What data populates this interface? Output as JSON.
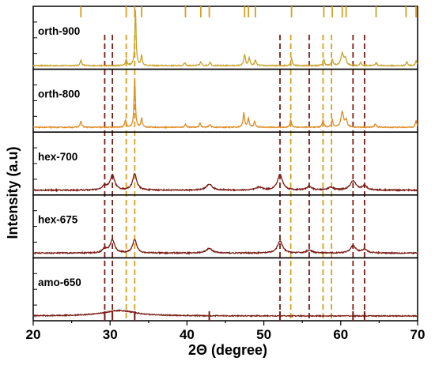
{
  "chart_data": {
    "type": "line",
    "xlabel": "2Θ (degree)",
    "ylabel": "Intensity (a.u)",
    "xlim": [
      20,
      70
    ],
    "x_ticks": [
      "20",
      "30",
      "40",
      "50",
      "60",
      "70"
    ],
    "panels": [
      {
        "name": "orth-900",
        "color": "#c8a22a",
        "baseline": 0.06,
        "noise": 0.008,
        "peaks": [
          {
            "x": 26.2,
            "h": 0.09,
            "w": 0.12
          },
          {
            "x": 32.1,
            "h": 0.1,
            "w": 0.12
          },
          {
            "x": 33.3,
            "h": 0.93,
            "w": 0.1
          },
          {
            "x": 34.1,
            "h": 0.18,
            "w": 0.1
          },
          {
            "x": 39.7,
            "h": 0.05,
            "w": 0.12
          },
          {
            "x": 41.8,
            "h": 0.06,
            "w": 0.12
          },
          {
            "x": 43.0,
            "h": 0.06,
            "w": 0.12
          },
          {
            "x": 47.5,
            "h": 0.18,
            "w": 0.12
          },
          {
            "x": 48.1,
            "h": 0.13,
            "w": 0.12
          },
          {
            "x": 48.9,
            "h": 0.09,
            "w": 0.12
          },
          {
            "x": 53.6,
            "h": 0.12,
            "w": 0.12
          },
          {
            "x": 57.8,
            "h": 0.1,
            "w": 0.12
          },
          {
            "x": 58.9,
            "h": 0.1,
            "w": 0.12
          },
          {
            "x": 60.2,
            "h": 0.2,
            "w": 0.2
          },
          {
            "x": 60.6,
            "h": 0.12,
            "w": 0.15
          },
          {
            "x": 62.6,
            "h": 0.05,
            "w": 0.12
          },
          {
            "x": 64.6,
            "h": 0.05,
            "w": 0.12
          },
          {
            "x": 68.6,
            "h": 0.06,
            "w": 0.12
          },
          {
            "x": 69.8,
            "h": 0.08,
            "w": 0.12
          }
        ]
      },
      {
        "name": "orth-800",
        "color": "#e08a22",
        "baseline": 0.08,
        "noise": 0.008,
        "peaks": [
          {
            "x": 26.2,
            "h": 0.1,
            "w": 0.12
          },
          {
            "x": 32.0,
            "h": 0.12,
            "w": 0.12
          },
          {
            "x": 33.2,
            "h": 0.82,
            "w": 0.1
          },
          {
            "x": 34.1,
            "h": 0.16,
            "w": 0.1
          },
          {
            "x": 39.8,
            "h": 0.05,
            "w": 0.12
          },
          {
            "x": 41.7,
            "h": 0.07,
            "w": 0.12
          },
          {
            "x": 43.0,
            "h": 0.05,
            "w": 0.12
          },
          {
            "x": 47.4,
            "h": 0.24,
            "w": 0.12
          },
          {
            "x": 48.0,
            "h": 0.14,
            "w": 0.12
          },
          {
            "x": 48.8,
            "h": 0.1,
            "w": 0.12
          },
          {
            "x": 53.5,
            "h": 0.12,
            "w": 0.12
          },
          {
            "x": 57.7,
            "h": 0.12,
            "w": 0.12
          },
          {
            "x": 58.9,
            "h": 0.12,
            "w": 0.12
          },
          {
            "x": 60.2,
            "h": 0.25,
            "w": 0.2
          },
          {
            "x": 60.7,
            "h": 0.12,
            "w": 0.15
          },
          {
            "x": 64.5,
            "h": 0.06,
            "w": 0.12
          },
          {
            "x": 69.8,
            "h": 0.11,
            "w": 0.12
          }
        ]
      },
      {
        "name": "hex-700",
        "color": "#7a1c14",
        "baseline": 0.08,
        "noise": 0.01,
        "peaks": [
          {
            "x": 29.3,
            "h": 0.07,
            "w": 0.35
          },
          {
            "x": 30.3,
            "h": 0.25,
            "w": 0.35
          },
          {
            "x": 33.2,
            "h": 0.27,
            "w": 0.32
          },
          {
            "x": 42.9,
            "h": 0.1,
            "w": 0.45
          },
          {
            "x": 49.4,
            "h": 0.05,
            "w": 0.45
          },
          {
            "x": 52.1,
            "h": 0.26,
            "w": 0.4
          },
          {
            "x": 55.9,
            "h": 0.06,
            "w": 0.4
          },
          {
            "x": 58.7,
            "h": 0.05,
            "w": 0.4
          },
          {
            "x": 61.6,
            "h": 0.15,
            "w": 0.45
          },
          {
            "x": 63.1,
            "h": 0.07,
            "w": 0.4
          }
        ]
      },
      {
        "name": "hex-675",
        "color": "#7a1c14",
        "baseline": 0.08,
        "noise": 0.01,
        "peaks": [
          {
            "x": 29.3,
            "h": 0.07,
            "w": 0.35
          },
          {
            "x": 30.3,
            "h": 0.22,
            "w": 0.35
          },
          {
            "x": 33.2,
            "h": 0.22,
            "w": 0.32
          },
          {
            "x": 42.9,
            "h": 0.08,
            "w": 0.45
          },
          {
            "x": 52.1,
            "h": 0.2,
            "w": 0.4
          },
          {
            "x": 55.9,
            "h": 0.05,
            "w": 0.4
          },
          {
            "x": 61.6,
            "h": 0.12,
            "w": 0.45
          },
          {
            "x": 63.1,
            "h": 0.06,
            "w": 0.4
          }
        ]
      },
      {
        "name": "amo-650",
        "color": "#7a1c14",
        "baseline": 0.08,
        "noise": 0.008,
        "peaks": [
          {
            "x": 31.2,
            "h": 0.09,
            "w": 2.6
          }
        ]
      }
    ],
    "dashed_reference_lines": [
      {
        "x": 29.3,
        "color": "#7a1c14"
      },
      {
        "x": 30.3,
        "color": "#7a1c14"
      },
      {
        "x": 32.1,
        "color": "#d8a020"
      },
      {
        "x": 33.2,
        "color": "#d8a020"
      },
      {
        "x": 52.1,
        "color": "#7a1c14"
      },
      {
        "x": 53.5,
        "color": "#d8a020"
      },
      {
        "x": 55.9,
        "color": "#7a1c14"
      },
      {
        "x": 57.7,
        "color": "#d8a020"
      },
      {
        "x": 58.8,
        "color": "#d8a020"
      },
      {
        "x": 61.6,
        "color": "#7a1c14"
      },
      {
        "x": 63.1,
        "color": "#7a1c14"
      }
    ],
    "top_reference_ticks": [
      26.2,
      32.1,
      33.2,
      34.1,
      39.8,
      41.8,
      42.9,
      47.5,
      48.0,
      48.9,
      53.6,
      57.8,
      58.9,
      60.2,
      60.7,
      64.6,
      68.5,
      69.8
    ],
    "bottom_reference_ticks": [
      29.3,
      30.3,
      33.2,
      42.9,
      52.1,
      61.6,
      63.1
    ]
  }
}
